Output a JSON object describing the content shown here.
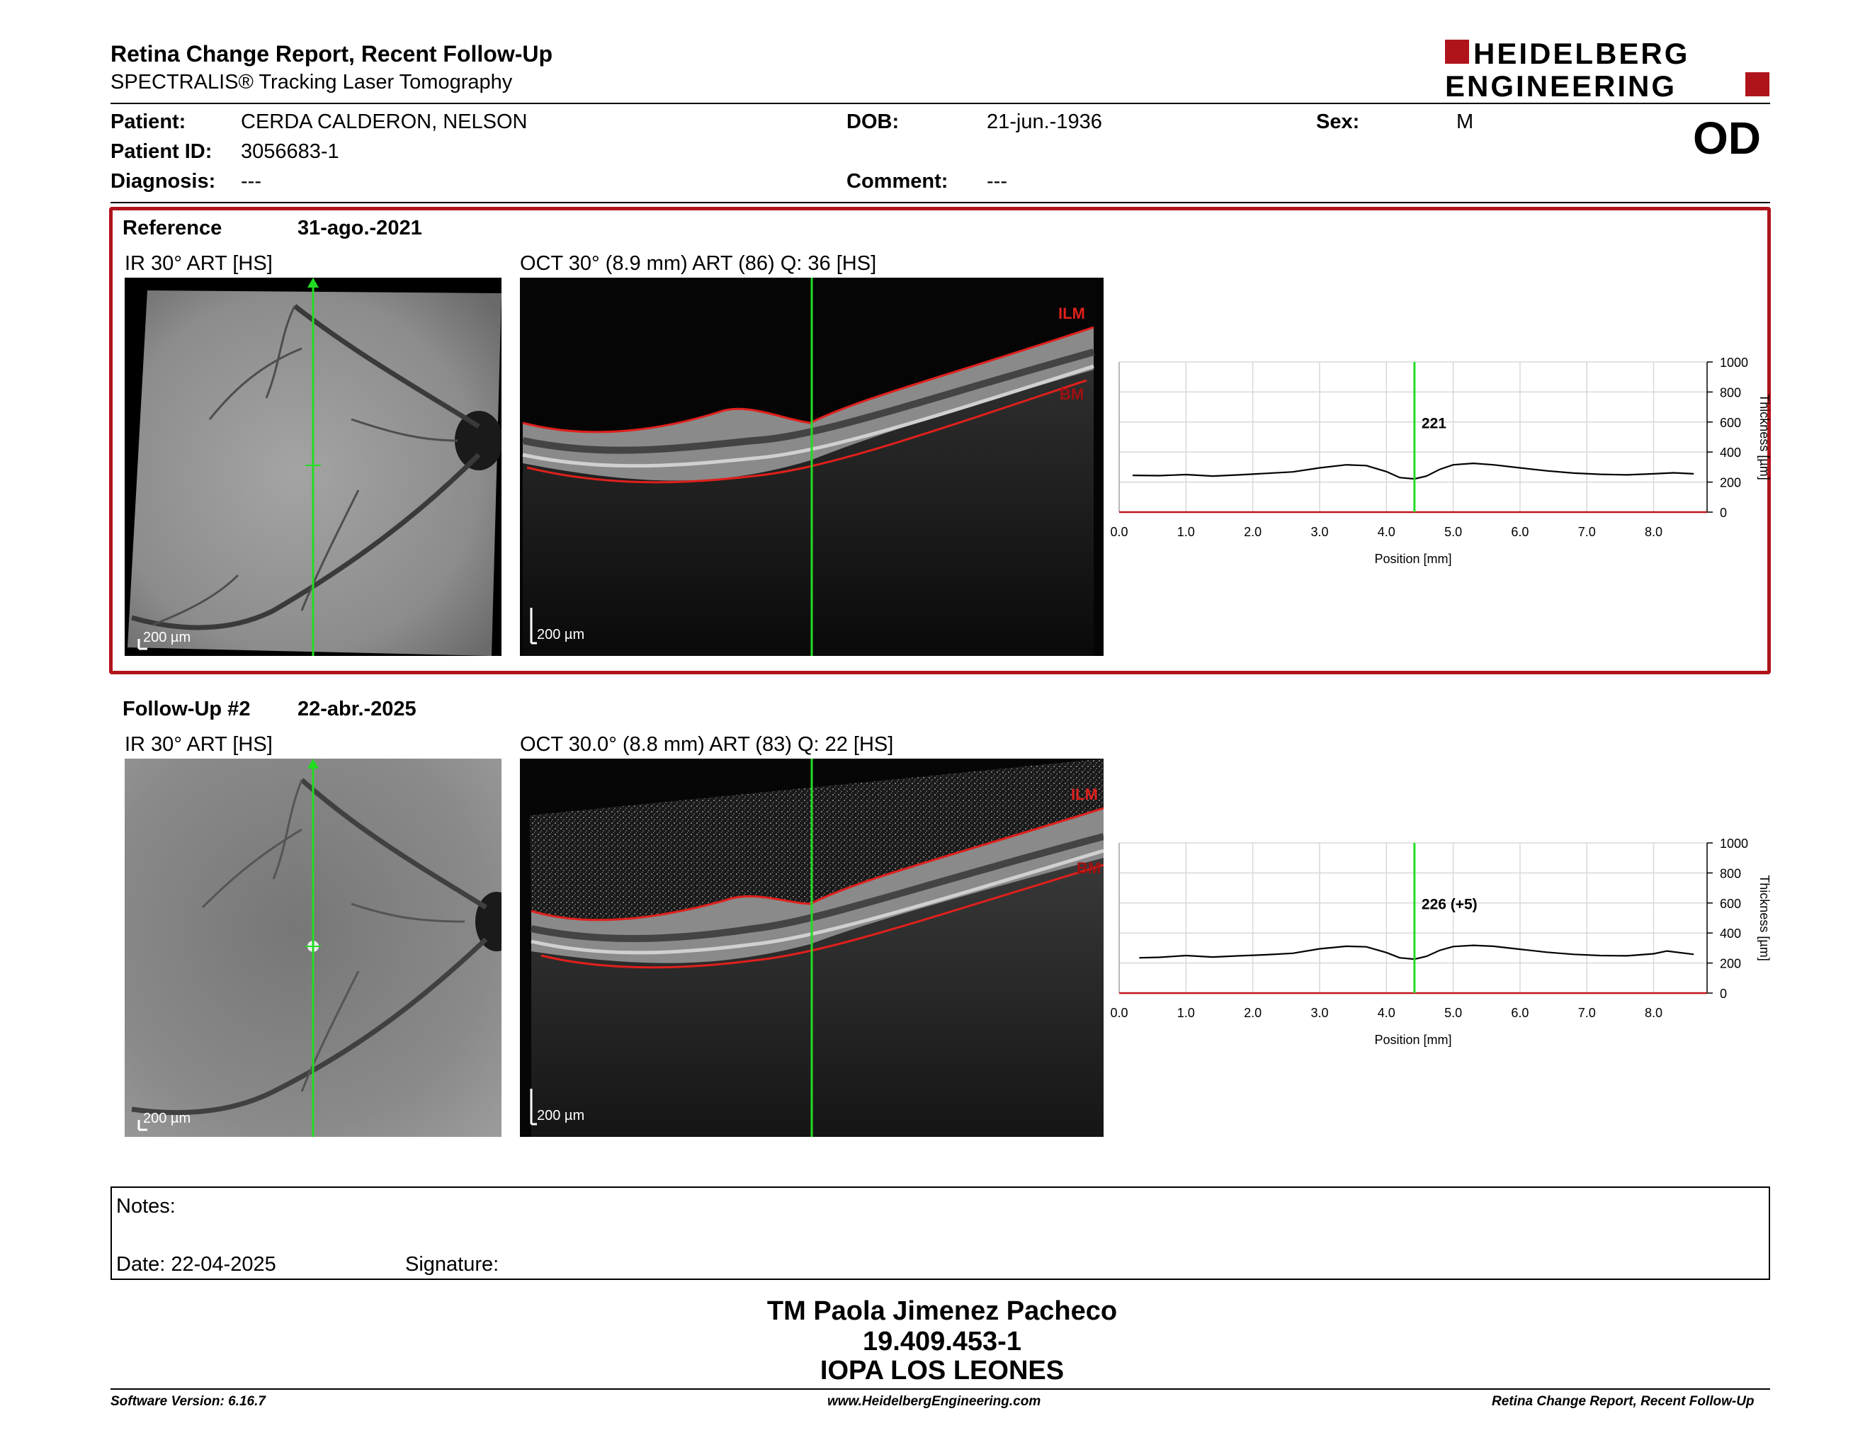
{
  "header": {
    "title": "Retina Change Report, Recent Follow-Up",
    "subtitle": "SPECTRALIS® Tracking Laser Tomography",
    "logo_line1": "HEIDELBERG",
    "logo_line2": "ENGINEERING",
    "eye": "OD"
  },
  "patient": {
    "patient_label": "Patient:",
    "patient_value": "CERDA CALDERON, NELSON",
    "id_label": "Patient ID:",
    "id_value": "3056683-1",
    "diagnosis_label": "Diagnosis:",
    "diagnosis_value": "---",
    "dob_label": "DOB:",
    "dob_value": "21-jun.-1936",
    "comment_label": "Comment:",
    "comment_value": "---",
    "sex_label": "Sex:",
    "sex_value": "M"
  },
  "reference": {
    "label": "Reference",
    "date": "31-ago.-2021",
    "ir_caption": "IR 30° ART [HS]",
    "oct_caption": "OCT 30° (8.9 mm) ART (86) Q: 36 [HS]",
    "scale": "200 µm",
    "ilm_label": "ILM",
    "bm_label": "BM",
    "thickness_value": "221"
  },
  "followup": {
    "label": "Follow-Up #2",
    "date": "22-abr.-2025",
    "ir_caption": "IR 30° ART [HS]",
    "oct_caption": "OCT 30.0° (8.8 mm) ART (83) Q: 22 [HS]",
    "scale": "200 µm",
    "ilm_label": "ILM",
    "bm_label": "BM",
    "thickness_value": "226 (+5)"
  },
  "chart_data": [
    {
      "type": "line",
      "xlabel": "Position [mm]",
      "ylabel": "Thickness [µm]",
      "xlim": [
        0,
        8.8
      ],
      "ylim": [
        0,
        1000
      ],
      "x_ticks": [
        "0.0",
        "1.0",
        "2.0",
        "3.0",
        "4.0",
        "5.0",
        "6.0",
        "7.0",
        "8.0"
      ],
      "y_ticks": [
        "0",
        "200",
        "400",
        "600",
        "800",
        "1000"
      ],
      "grid": true,
      "cursor_x": 4.42,
      "cursor_label": "221",
      "series": [
        {
          "x": [
            0.2,
            0.6,
            1.0,
            1.4,
            1.8,
            2.2,
            2.6,
            3.0,
            3.4,
            3.7,
            4.0,
            4.2,
            4.42,
            4.6,
            4.8,
            5.0,
            5.3,
            5.6,
            6.0,
            6.4,
            6.8,
            7.2,
            7.6,
            8.0,
            8.3,
            8.6
          ],
          "values": [
            245,
            243,
            250,
            240,
            248,
            258,
            268,
            295,
            315,
            310,
            270,
            230,
            221,
            240,
            285,
            315,
            325,
            315,
            295,
            275,
            260,
            252,
            248,
            255,
            262,
            255
          ]
        }
      ]
    },
    {
      "type": "line",
      "xlabel": "Position [mm]",
      "ylabel": "Thickness [µm]",
      "xlim": [
        0,
        8.8
      ],
      "ylim": [
        0,
        1000
      ],
      "x_ticks": [
        "0.0",
        "1.0",
        "2.0",
        "3.0",
        "4.0",
        "5.0",
        "6.0",
        "7.0",
        "8.0"
      ],
      "y_ticks": [
        "0",
        "200",
        "400",
        "600",
        "800",
        "1000"
      ],
      "grid": true,
      "cursor_x": 4.42,
      "cursor_label": "226 (+5)",
      "series": [
        {
          "x": [
            0.3,
            0.6,
            1.0,
            1.4,
            1.8,
            2.2,
            2.6,
            3.0,
            3.4,
            3.7,
            4.0,
            4.2,
            4.42,
            4.6,
            4.8,
            5.0,
            5.3,
            5.6,
            6.0,
            6.4,
            6.8,
            7.2,
            7.6,
            8.0,
            8.2,
            8.6
          ],
          "values": [
            235,
            238,
            250,
            240,
            248,
            255,
            265,
            295,
            312,
            308,
            270,
            235,
            226,
            245,
            285,
            310,
            318,
            312,
            292,
            272,
            258,
            250,
            248,
            262,
            280,
            258
          ]
        }
      ]
    }
  ],
  "notes": {
    "notes_label": "Notes:",
    "date_label": "Date: 22-04-2025",
    "signature_label": "Signature:"
  },
  "signature": {
    "name": "TM Paola Jimenez Pacheco",
    "rut": "19.409.453-1",
    "institution": "IOPA LOS LEONES"
  },
  "footer": {
    "version": "Software Version: 6.16.7",
    "website": "www.HeidelbergEngineering.com",
    "report_name": "Retina Change Report, Recent Follow-Up"
  },
  "colors": {
    "accent_red": "#b0141b",
    "cursor_green": "#22dd22",
    "layer_red": "#e0201c"
  }
}
